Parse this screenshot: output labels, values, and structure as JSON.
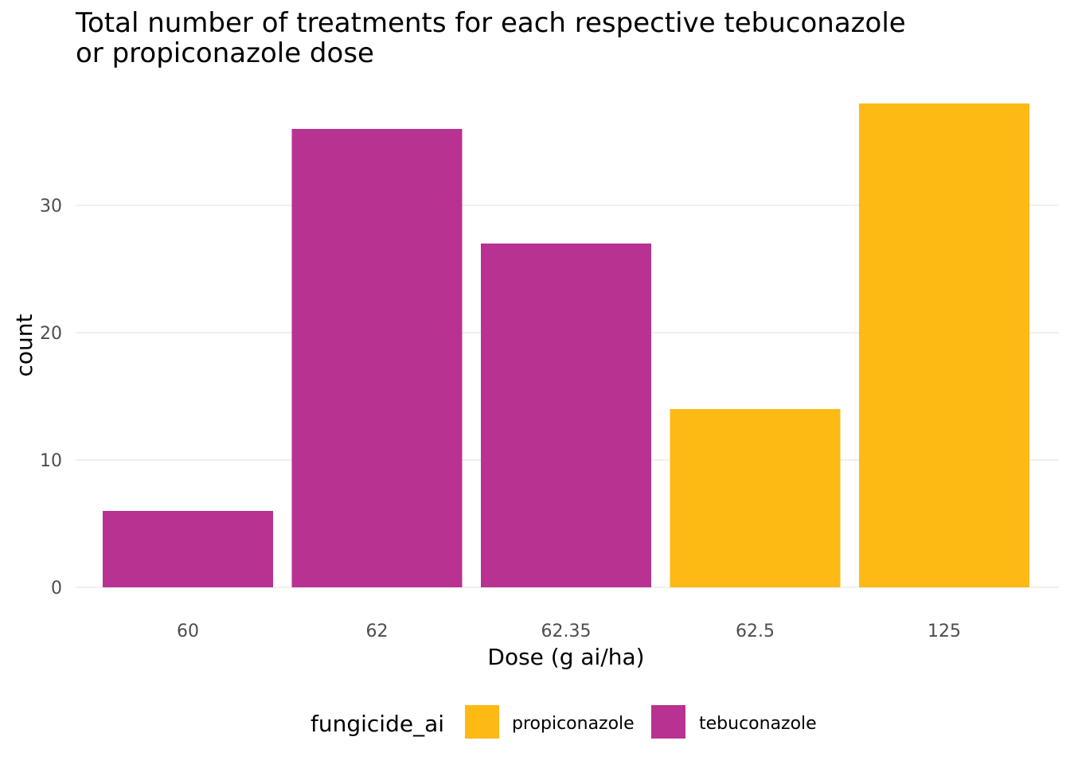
{
  "chart_data": {
    "type": "bar",
    "title_lines": [
      "Total number of treatments for each respective tebuconazole",
      "or propiconazole dose"
    ],
    "xlabel": "Dose (g ai/ha)",
    "ylabel": "count",
    "categories": [
      "60",
      "62",
      "62.35",
      "62.5",
      "125"
    ],
    "values": [
      6,
      36,
      27,
      14,
      38
    ],
    "groups": [
      "tebuconazole",
      "tebuconazole",
      "tebuconazole",
      "propiconazole",
      "propiconazole"
    ],
    "ylim": [
      0,
      38
    ],
    "yticks": [
      0,
      10,
      20,
      30
    ],
    "grid": true,
    "legend": {
      "title": "fungicide_ai",
      "placement": "bottom",
      "entries": [
        {
          "name": "propiconazole",
          "color": "#FDB914"
        },
        {
          "name": "tebuconazole",
          "color": "#B83292"
        }
      ]
    }
  }
}
